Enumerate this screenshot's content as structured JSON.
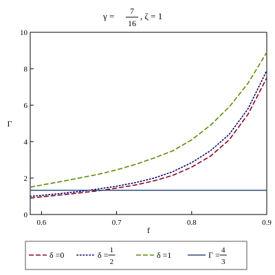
{
  "chart_data": {
    "type": "line",
    "title": {
      "gamma_prefix": "γ =",
      "gamma_num": "7",
      "gamma_den": "16",
      "zeta": ", ζ = 1"
    },
    "xlabel": "f",
    "ylabel": "Γ",
    "xlim": [
      0.585,
      0.9
    ],
    "ylim": [
      0,
      10
    ],
    "xticks": [
      0.6,
      0.7,
      0.8,
      0.9
    ],
    "xtick_labels": [
      "0.6",
      "0.7",
      "0.8",
      "0.9"
    ],
    "yticks": [
      0,
      2,
      4,
      6,
      8,
      10
    ],
    "ytick_labels": [
      "0",
      "2",
      "4",
      "6",
      "8",
      "10"
    ],
    "grid": false,
    "legend_position": "bottom",
    "series": [
      {
        "legend_prefix": "δ = ",
        "legend_value": "0",
        "color": "#8b0020",
        "style": "dashed",
        "x": [
          0.585,
          0.6,
          0.625,
          0.65,
          0.675,
          0.7,
          0.725,
          0.75,
          0.775,
          0.8,
          0.825,
          0.85,
          0.875,
          0.9
        ],
        "y": [
          0.9,
          0.97,
          1.07,
          1.18,
          1.3,
          1.45,
          1.62,
          1.85,
          2.15,
          2.6,
          3.2,
          4.1,
          5.5,
          7.5
        ]
      },
      {
        "legend_prefix": "δ = ",
        "legend_num": "1",
        "legend_den": "2",
        "color": "#00006e",
        "style": "dotted",
        "x": [
          0.585,
          0.6,
          0.625,
          0.65,
          0.675,
          0.7,
          0.725,
          0.75,
          0.775,
          0.8,
          0.825,
          0.85,
          0.875,
          0.9
        ],
        "y": [
          1.0,
          1.05,
          1.15,
          1.26,
          1.4,
          1.55,
          1.75,
          2.0,
          2.35,
          2.85,
          3.5,
          4.4,
          5.8,
          7.9
        ]
      },
      {
        "legend_prefix": "δ = ",
        "legend_value": "1",
        "color": "#5a8a00",
        "style": "dashed",
        "x": [
          0.585,
          0.6,
          0.625,
          0.65,
          0.675,
          0.7,
          0.725,
          0.75,
          0.775,
          0.8,
          0.825,
          0.85,
          0.875,
          0.9
        ],
        "y": [
          1.5,
          1.62,
          1.8,
          2.0,
          2.2,
          2.45,
          2.75,
          3.1,
          3.5,
          4.1,
          4.9,
          5.9,
          7.2,
          8.9
        ]
      },
      {
        "legend_prefix": "Γ = ",
        "legend_num": "4",
        "legend_den": "3",
        "color": "#2b4b7a",
        "style": "solid",
        "x": [
          0.585,
          0.9
        ],
        "y": [
          1.3333,
          1.3333
        ]
      }
    ]
  }
}
